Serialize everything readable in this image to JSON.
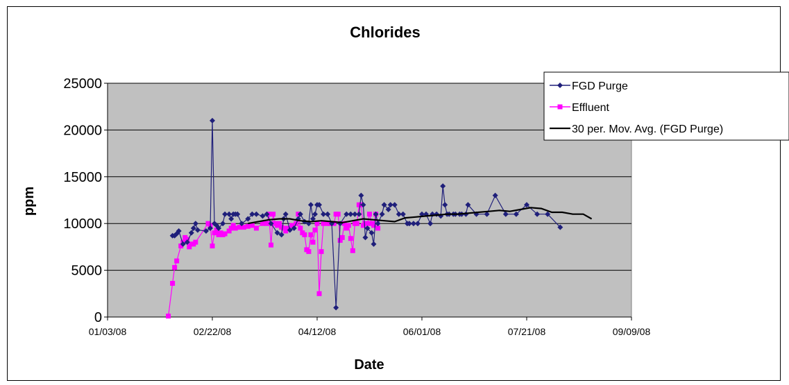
{
  "chart_data": {
    "type": "line",
    "title": "Chlorides",
    "xlabel": "Date",
    "ylabel": "ppm",
    "ylim": [
      0,
      25000
    ],
    "yticks": [
      "0",
      "5000",
      "10000",
      "15000",
      "20000",
      "25000"
    ],
    "xticks": [
      "01/03/08",
      "02/22/08",
      "04/12/08",
      "06/01/08",
      "07/21/08",
      "09/09/08"
    ],
    "xlim": [
      "2008-01-03",
      "2008-09-09"
    ],
    "grid": true,
    "legend_position": "top-right",
    "series": [
      {
        "name": "FGD Purge",
        "color": "#1f1f7a",
        "marker": "diamond",
        "points": [
          [
            "2008-02-03",
            8700
          ],
          [
            "2008-02-04",
            8700
          ],
          [
            "2008-02-05",
            8900
          ],
          [
            "2008-02-06",
            9200
          ],
          [
            "2008-02-08",
            7800
          ],
          [
            "2008-02-10",
            8000
          ],
          [
            "2008-02-12",
            9000
          ],
          [
            "2008-02-13",
            9500
          ],
          [
            "2008-02-14",
            10000
          ],
          [
            "2008-02-15",
            9300
          ],
          [
            "2008-02-19",
            9200
          ],
          [
            "2008-02-21",
            9500
          ],
          [
            "2008-02-22",
            21000
          ],
          [
            "2008-02-23",
            10000
          ],
          [
            "2008-02-24",
            9800
          ],
          [
            "2008-02-25",
            9500
          ],
          [
            "2008-02-27",
            10000
          ],
          [
            "2008-02-28",
            11000
          ],
          [
            "2008-03-01",
            11000
          ],
          [
            "2008-03-02",
            10500
          ],
          [
            "2008-03-03",
            11000
          ],
          [
            "2008-03-04",
            11000
          ],
          [
            "2008-03-05",
            11000
          ],
          [
            "2008-03-07",
            10000
          ],
          [
            "2008-03-10",
            10500
          ],
          [
            "2008-03-12",
            11000
          ],
          [
            "2008-03-14",
            11000
          ],
          [
            "2008-03-17",
            10800
          ],
          [
            "2008-03-19",
            11000
          ],
          [
            "2008-03-21",
            10000
          ],
          [
            "2008-03-24",
            9000
          ],
          [
            "2008-03-26",
            8800
          ],
          [
            "2008-03-27",
            10500
          ],
          [
            "2008-03-28",
            11000
          ],
          [
            "2008-03-30",
            9300
          ],
          [
            "2008-04-01",
            9500
          ],
          [
            "2008-04-03",
            10500
          ],
          [
            "2008-04-04",
            11000
          ],
          [
            "2008-04-06",
            10200
          ],
          [
            "2008-04-08",
            10000
          ],
          [
            "2008-04-09",
            12000
          ],
          [
            "2008-04-10",
            10500
          ],
          [
            "2008-04-11",
            11000
          ],
          [
            "2008-04-12",
            12000
          ],
          [
            "2008-04-13",
            12000
          ],
          [
            "2008-04-15",
            11000
          ],
          [
            "2008-04-17",
            11000
          ],
          [
            "2008-04-19",
            10000
          ],
          [
            "2008-04-21",
            1000
          ],
          [
            "2008-04-23",
            10000
          ],
          [
            "2008-04-26",
            11000
          ],
          [
            "2008-04-28",
            11000
          ],
          [
            "2008-04-30",
            11000
          ],
          [
            "2008-05-02",
            11000
          ],
          [
            "2008-05-03",
            13000
          ],
          [
            "2008-05-04",
            12000
          ],
          [
            "2008-05-05",
            8500
          ],
          [
            "2008-05-06",
            9500
          ],
          [
            "2008-05-08",
            9000
          ],
          [
            "2008-05-09",
            7800
          ],
          [
            "2008-05-10",
            11000
          ],
          [
            "2008-05-11",
            10000
          ],
          [
            "2008-05-13",
            11000
          ],
          [
            "2008-05-14",
            12000
          ],
          [
            "2008-05-16",
            11500
          ],
          [
            "2008-05-17",
            12000
          ],
          [
            "2008-05-19",
            12000
          ],
          [
            "2008-05-21",
            11000
          ],
          [
            "2008-05-23",
            11000
          ],
          [
            "2008-05-25",
            10000
          ],
          [
            "2008-05-26",
            10000
          ],
          [
            "2008-05-28",
            10000
          ],
          [
            "2008-05-30",
            10000
          ],
          [
            "2008-06-01",
            11000
          ],
          [
            "2008-06-03",
            11000
          ],
          [
            "2008-06-05",
            10000
          ],
          [
            "2008-06-06",
            11000
          ],
          [
            "2008-06-08",
            11000
          ],
          [
            "2008-06-10",
            10800
          ],
          [
            "2008-06-11",
            14000
          ],
          [
            "2008-06-12",
            12000
          ],
          [
            "2008-06-13",
            11000
          ],
          [
            "2008-06-14",
            11000
          ],
          [
            "2008-06-16",
            11000
          ],
          [
            "2008-06-17",
            11000
          ],
          [
            "2008-06-19",
            11000
          ],
          [
            "2008-06-20",
            11000
          ],
          [
            "2008-06-22",
            11000
          ],
          [
            "2008-06-23",
            12000
          ],
          [
            "2008-06-27",
            11000
          ],
          [
            "2008-07-02",
            11000
          ],
          [
            "2008-07-06",
            13000
          ],
          [
            "2008-07-11",
            11000
          ],
          [
            "2008-07-16",
            11000
          ],
          [
            "2008-07-21",
            12000
          ],
          [
            "2008-07-26",
            11000
          ],
          [
            "2008-07-31",
            11000
          ],
          [
            "2008-08-06",
            9600
          ]
        ]
      },
      {
        "name": "Effluent",
        "color": "#ff00ff",
        "marker": "square",
        "points": [
          [
            "2008-02-01",
            100
          ],
          [
            "2008-02-03",
            3600
          ],
          [
            "2008-02-04",
            5300
          ],
          [
            "2008-02-05",
            6000
          ],
          [
            "2008-02-07",
            7600
          ],
          [
            "2008-02-08",
            8000
          ],
          [
            "2008-02-09",
            8500
          ],
          [
            "2008-02-10",
            8300
          ],
          [
            "2008-02-11",
            7500
          ],
          [
            "2008-02-12",
            7800
          ],
          [
            "2008-02-13",
            7800
          ],
          [
            "2008-02-14",
            8000
          ],
          [
            "2008-02-20",
            10000
          ],
          [
            "2008-02-21",
            9800
          ],
          [
            "2008-02-22",
            7600
          ],
          [
            "2008-02-23",
            9000
          ],
          [
            "2008-02-24",
            9300
          ],
          [
            "2008-02-25",
            8800
          ],
          [
            "2008-02-26",
            9000
          ],
          [
            "2008-02-27",
            8800
          ],
          [
            "2008-02-28",
            8900
          ],
          [
            "2008-03-01",
            9200
          ],
          [
            "2008-03-02",
            9500
          ],
          [
            "2008-03-03",
            9800
          ],
          [
            "2008-03-04",
            9500
          ],
          [
            "2008-03-06",
            9600
          ],
          [
            "2008-03-08",
            9600
          ],
          [
            "2008-03-10",
            9700
          ],
          [
            "2008-03-12",
            9800
          ],
          [
            "2008-03-14",
            9500
          ],
          [
            "2008-03-17",
            10000
          ],
          [
            "2008-03-19",
            10000
          ],
          [
            "2008-03-20",
            11000
          ],
          [
            "2008-03-21",
            7700
          ],
          [
            "2008-03-22",
            11000
          ],
          [
            "2008-03-23",
            10000
          ],
          [
            "2008-03-24",
            9800
          ],
          [
            "2008-03-25",
            10000
          ],
          [
            "2008-03-26",
            9600
          ],
          [
            "2008-03-27",
            9500
          ],
          [
            "2008-03-28",
            9200
          ],
          [
            "2008-03-29",
            9500
          ],
          [
            "2008-03-31",
            9800
          ],
          [
            "2008-04-02",
            10000
          ],
          [
            "2008-04-03",
            11000
          ],
          [
            "2008-04-04",
            9500
          ],
          [
            "2008-04-05",
            9000
          ],
          [
            "2008-04-06",
            8800
          ],
          [
            "2008-04-07",
            7200
          ],
          [
            "2008-04-08",
            7000
          ],
          [
            "2008-04-09",
            8800
          ],
          [
            "2008-04-10",
            8000
          ],
          [
            "2008-04-11",
            9300
          ],
          [
            "2008-04-12",
            10000
          ],
          [
            "2008-04-13",
            2500
          ],
          [
            "2008-04-14",
            7000
          ],
          [
            "2008-04-15",
            10000
          ],
          [
            "2008-04-17",
            10000
          ],
          [
            "2008-04-18",
            10000
          ],
          [
            "2008-04-19",
            10000
          ],
          [
            "2008-04-20",
            10000
          ],
          [
            "2008-04-21",
            11000
          ],
          [
            "2008-04-22",
            11000
          ],
          [
            "2008-04-23",
            8200
          ],
          [
            "2008-04-24",
            8500
          ],
          [
            "2008-04-25",
            10000
          ],
          [
            "2008-04-26",
            9500
          ],
          [
            "2008-04-27",
            9800
          ],
          [
            "2008-04-28",
            8400
          ],
          [
            "2008-04-29",
            7100
          ],
          [
            "2008-04-30",
            10000
          ],
          [
            "2008-05-01",
            10000
          ],
          [
            "2008-05-02",
            12000
          ],
          [
            "2008-05-03",
            12000
          ],
          [
            "2008-05-04",
            9800
          ],
          [
            "2008-05-05",
            10000
          ],
          [
            "2008-05-06",
            10000
          ],
          [
            "2008-05-07",
            11000
          ],
          [
            "2008-05-08",
            10000
          ],
          [
            "2008-05-09",
            9800
          ],
          [
            "2008-05-10",
            11000
          ],
          [
            "2008-05-11",
            9500
          ]
        ]
      },
      {
        "name": "30 per. Mov. Avg. (FGD Purge)",
        "color": "#000000",
        "marker": "none",
        "points": [
          [
            "2008-03-10",
            10000
          ],
          [
            "2008-03-15",
            10200
          ],
          [
            "2008-03-20",
            10400
          ],
          [
            "2008-03-25",
            10500
          ],
          [
            "2008-03-30",
            10500
          ],
          [
            "2008-04-04",
            10300
          ],
          [
            "2008-04-09",
            10200
          ],
          [
            "2008-04-14",
            10300
          ],
          [
            "2008-04-19",
            10200
          ],
          [
            "2008-04-24",
            10100
          ],
          [
            "2008-04-29",
            10300
          ],
          [
            "2008-05-04",
            10500
          ],
          [
            "2008-05-09",
            10400
          ],
          [
            "2008-05-14",
            10300
          ],
          [
            "2008-05-19",
            10200
          ],
          [
            "2008-05-24",
            10600
          ],
          [
            "2008-05-29",
            10700
          ],
          [
            "2008-06-03",
            10800
          ],
          [
            "2008-06-08",
            10900
          ],
          [
            "2008-06-13",
            11000
          ],
          [
            "2008-06-18",
            11000
          ],
          [
            "2008-06-23",
            11100
          ],
          [
            "2008-06-28",
            11200
          ],
          [
            "2008-07-03",
            11300
          ],
          [
            "2008-07-08",
            11400
          ],
          [
            "2008-07-13",
            11300
          ],
          [
            "2008-07-18",
            11500
          ],
          [
            "2008-07-23",
            11700
          ],
          [
            "2008-07-28",
            11600
          ],
          [
            "2008-08-02",
            11200
          ],
          [
            "2008-08-07",
            11200
          ],
          [
            "2008-08-12",
            11000
          ],
          [
            "2008-08-17",
            11000
          ],
          [
            "2008-08-21",
            10500
          ]
        ]
      }
    ]
  }
}
